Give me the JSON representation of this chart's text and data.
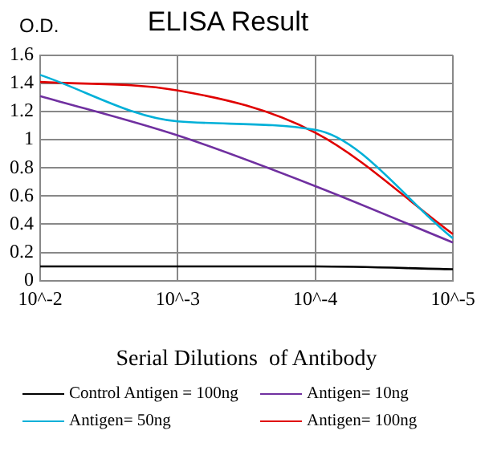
{
  "chart_data": {
    "type": "line",
    "title": "ELISA Result",
    "ylabel": "O.D.",
    "xlabel": "Serial Dilutions  of Antibody",
    "categories": [
      "10^-2",
      "10^-3",
      "10^-4",
      "10^-5"
    ],
    "series": [
      {
        "name": "Control Antigen = 100ng",
        "color": "#000000",
        "values": [
          0.1,
          0.1,
          0.1,
          0.08
        ]
      },
      {
        "name": "Antigen= 10ng",
        "color": "#7030a0",
        "values": [
          1.31,
          1.03,
          0.67,
          0.27
        ]
      },
      {
        "name": "Antigen= 50ng",
        "color": "#00b0d8",
        "values": [
          1.46,
          1.13,
          1.07,
          0.3
        ]
      },
      {
        "name": "Antigen= 100ng",
        "color": "#e00000",
        "values": [
          1.41,
          1.35,
          1.05,
          0.33
        ]
      }
    ],
    "ylim": [
      0,
      1.6
    ],
    "yticks": [
      0,
      0.2,
      0.4,
      0.6,
      0.8,
      1,
      1.2,
      1.4,
      1.6
    ],
    "grid": true,
    "legend": "bottom",
    "marker": "none",
    "line_style": "solid"
  }
}
